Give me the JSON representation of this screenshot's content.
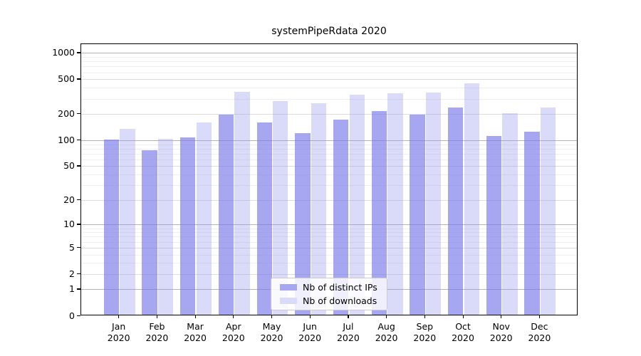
{
  "title": "systemPipeRdata 2020",
  "chart_data": {
    "type": "bar",
    "title": "systemPipeRdata 2020",
    "x_months": [
      "Jan",
      "Feb",
      "Mar",
      "Apr",
      "May",
      "Jun",
      "Jul",
      "Aug",
      "Sep",
      "Oct",
      "Nov",
      "Dec"
    ],
    "x_year": "2020",
    "series": [
      {
        "name": "Nb of distinct IPs",
        "legend_color": "#a6a6f1",
        "fill": "rgba(118,118,233,0.65)",
        "values": [
          99,
          74,
          105,
          193,
          156,
          118,
          167,
          212,
          193,
          231,
          108,
          121
        ]
      },
      {
        "name": "Nb of downloads",
        "legend_color": "#dadaf9",
        "fill": "rgba(150,150,238,0.35)",
        "values": [
          131,
          101,
          156,
          352,
          272,
          259,
          327,
          338,
          345,
          440,
          200,
          230
        ]
      }
    ],
    "y_axis": {
      "scale": "log1p",
      "tick_labels": [
        "1000",
        "500",
        "200",
        "100",
        "50",
        "20",
        "10",
        "5",
        "2",
        "1",
        "0"
      ],
      "tick_values": [
        1000,
        500,
        200,
        100,
        50,
        20,
        10,
        5,
        2,
        1,
        0
      ],
      "range_min": 0,
      "range_max": 1250,
      "major_grid": [
        1,
        10,
        100,
        1000
      ],
      "mid_grid": [
        2,
        5,
        20,
        50,
        200,
        500
      ],
      "minor_grid": [
        3,
        4,
        6,
        7,
        8,
        9,
        30,
        40,
        60,
        70,
        80,
        90,
        300,
        400,
        600,
        700,
        800,
        900
      ]
    },
    "legend_position": "lower-center-inside",
    "grid": true
  },
  "colors": {
    "background": "#ffffff",
    "frame": "#000000",
    "grid_major": "#b4b4b4",
    "grid_mid": "#dcdcdc",
    "grid_minor": "#efefef",
    "bar_distinct_ips": "#a6a6f1",
    "bar_downloads": "#dadaf9"
  }
}
